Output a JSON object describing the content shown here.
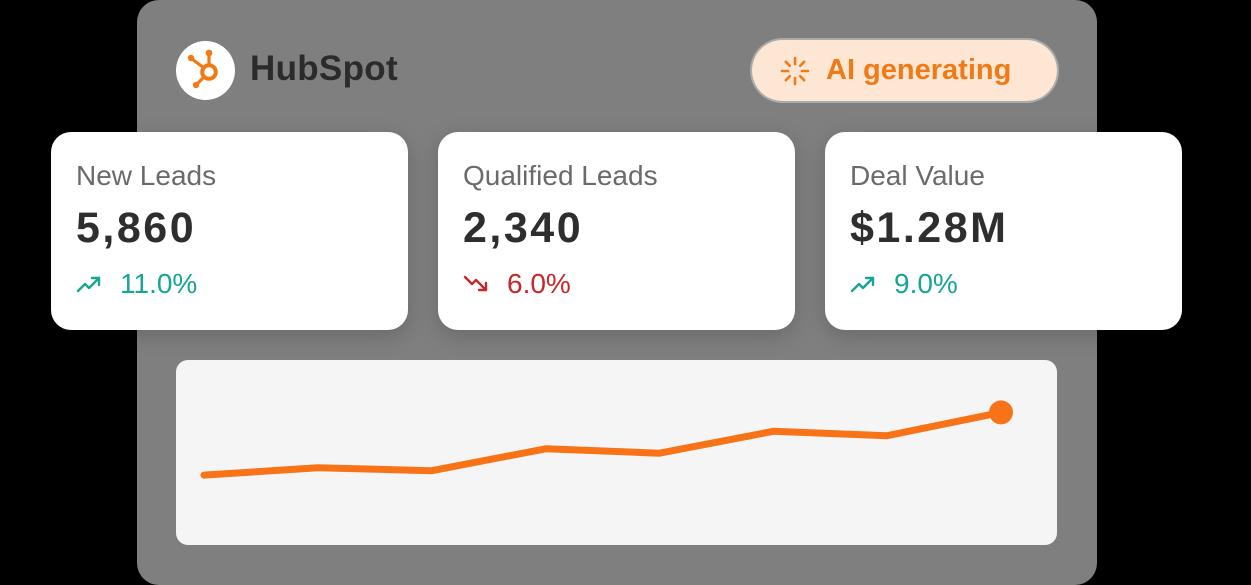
{
  "header": {
    "brand_name": "HubSpot",
    "logo_icon": "hubspot-sprocket-icon",
    "brand_color": "#F07A16"
  },
  "ai_status": {
    "label": "AI generating",
    "icon": "loading-spinner-icon",
    "color": "#F07A16",
    "background": "#FDE6D3"
  },
  "metrics": [
    {
      "label": "New Leads",
      "value": "5,860",
      "delta": "11.0%",
      "trend": "up",
      "icon": "trending-up-icon"
    },
    {
      "label": "Qualified Leads",
      "value": "2,340",
      "delta": "6.0%",
      "trend": "down",
      "icon": "trending-down-icon"
    },
    {
      "label": "Deal Value",
      "value": "$1.28M",
      "delta": "9.0%",
      "trend": "up",
      "icon": "trending-up-icon"
    }
  ],
  "colors": {
    "trend_up": "#17A595",
    "trend_down": "#C62828"
  },
  "chart_data": {
    "type": "line",
    "title": "",
    "xlabel": "",
    "ylabel": "",
    "x": [
      1,
      2,
      3,
      4,
      5,
      6,
      7,
      8
    ],
    "series": [
      {
        "values": [
          1.0,
          3.5,
          2.5,
          10.0,
          8.5,
          16.0,
          14.5,
          22.5
        ]
      }
    ],
    "ylim": [
      0,
      24
    ],
    "highlight_last_point": true,
    "grid": false,
    "color": "#F87318"
  }
}
